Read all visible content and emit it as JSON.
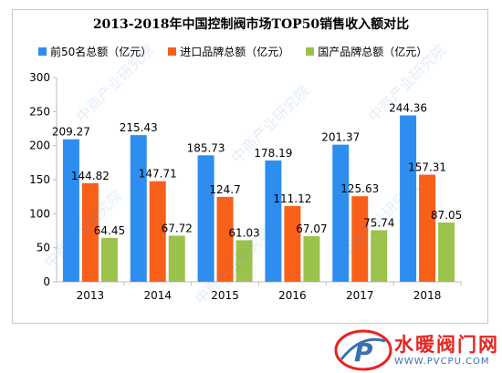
{
  "chart_data": {
    "type": "bar",
    "title": "2013-2018年中国控制阀市场TOP50销售收入额对比",
    "categories": [
      "2013",
      "2014",
      "2015",
      "2016",
      "2017",
      "2018"
    ],
    "series": [
      {
        "name": "前50名总额（亿元）",
        "values": [
          209.27,
          215.43,
          185.73,
          178.19,
          201.37,
          244.36
        ],
        "labels": [
          "209.27",
          "215.43",
          "185.73",
          "178.19",
          "201.37",
          "244.36"
        ],
        "color": "#2e8ef0"
      },
      {
        "name": "进口品牌总额（亿元）",
        "values": [
          144.82,
          147.71,
          124.7,
          111.12,
          125.63,
          157.31
        ],
        "labels": [
          "144.82",
          "147.71",
          "124.7",
          "111.12",
          "125.63",
          "157.31"
        ],
        "color": "#f8601a"
      },
      {
        "name": "国产品牌总额（亿元）",
        "values": [
          64.45,
          67.72,
          61.03,
          67.07,
          75.74,
          87.05
        ],
        "labels": [
          "64.45",
          "67.72",
          "61.03",
          "67.07",
          "75.74",
          "87.05"
        ],
        "color": "#9bc34c"
      }
    ],
    "yticks": [
      "0",
      "50",
      "100",
      "150",
      "200",
      "250",
      "300"
    ],
    "ylim": [
      0,
      300
    ],
    "grid": false,
    "legend_position": "top-left"
  },
  "watermark": {
    "text": "中商产业研究院",
    "color": "#4a8ccc"
  },
  "logo": {
    "name": "水暖阀门网",
    "url": "WWW.PVCPU.COM",
    "mark": "P",
    "colors": {
      "red": "#e8241f",
      "blue": "#3a6fb6"
    }
  }
}
